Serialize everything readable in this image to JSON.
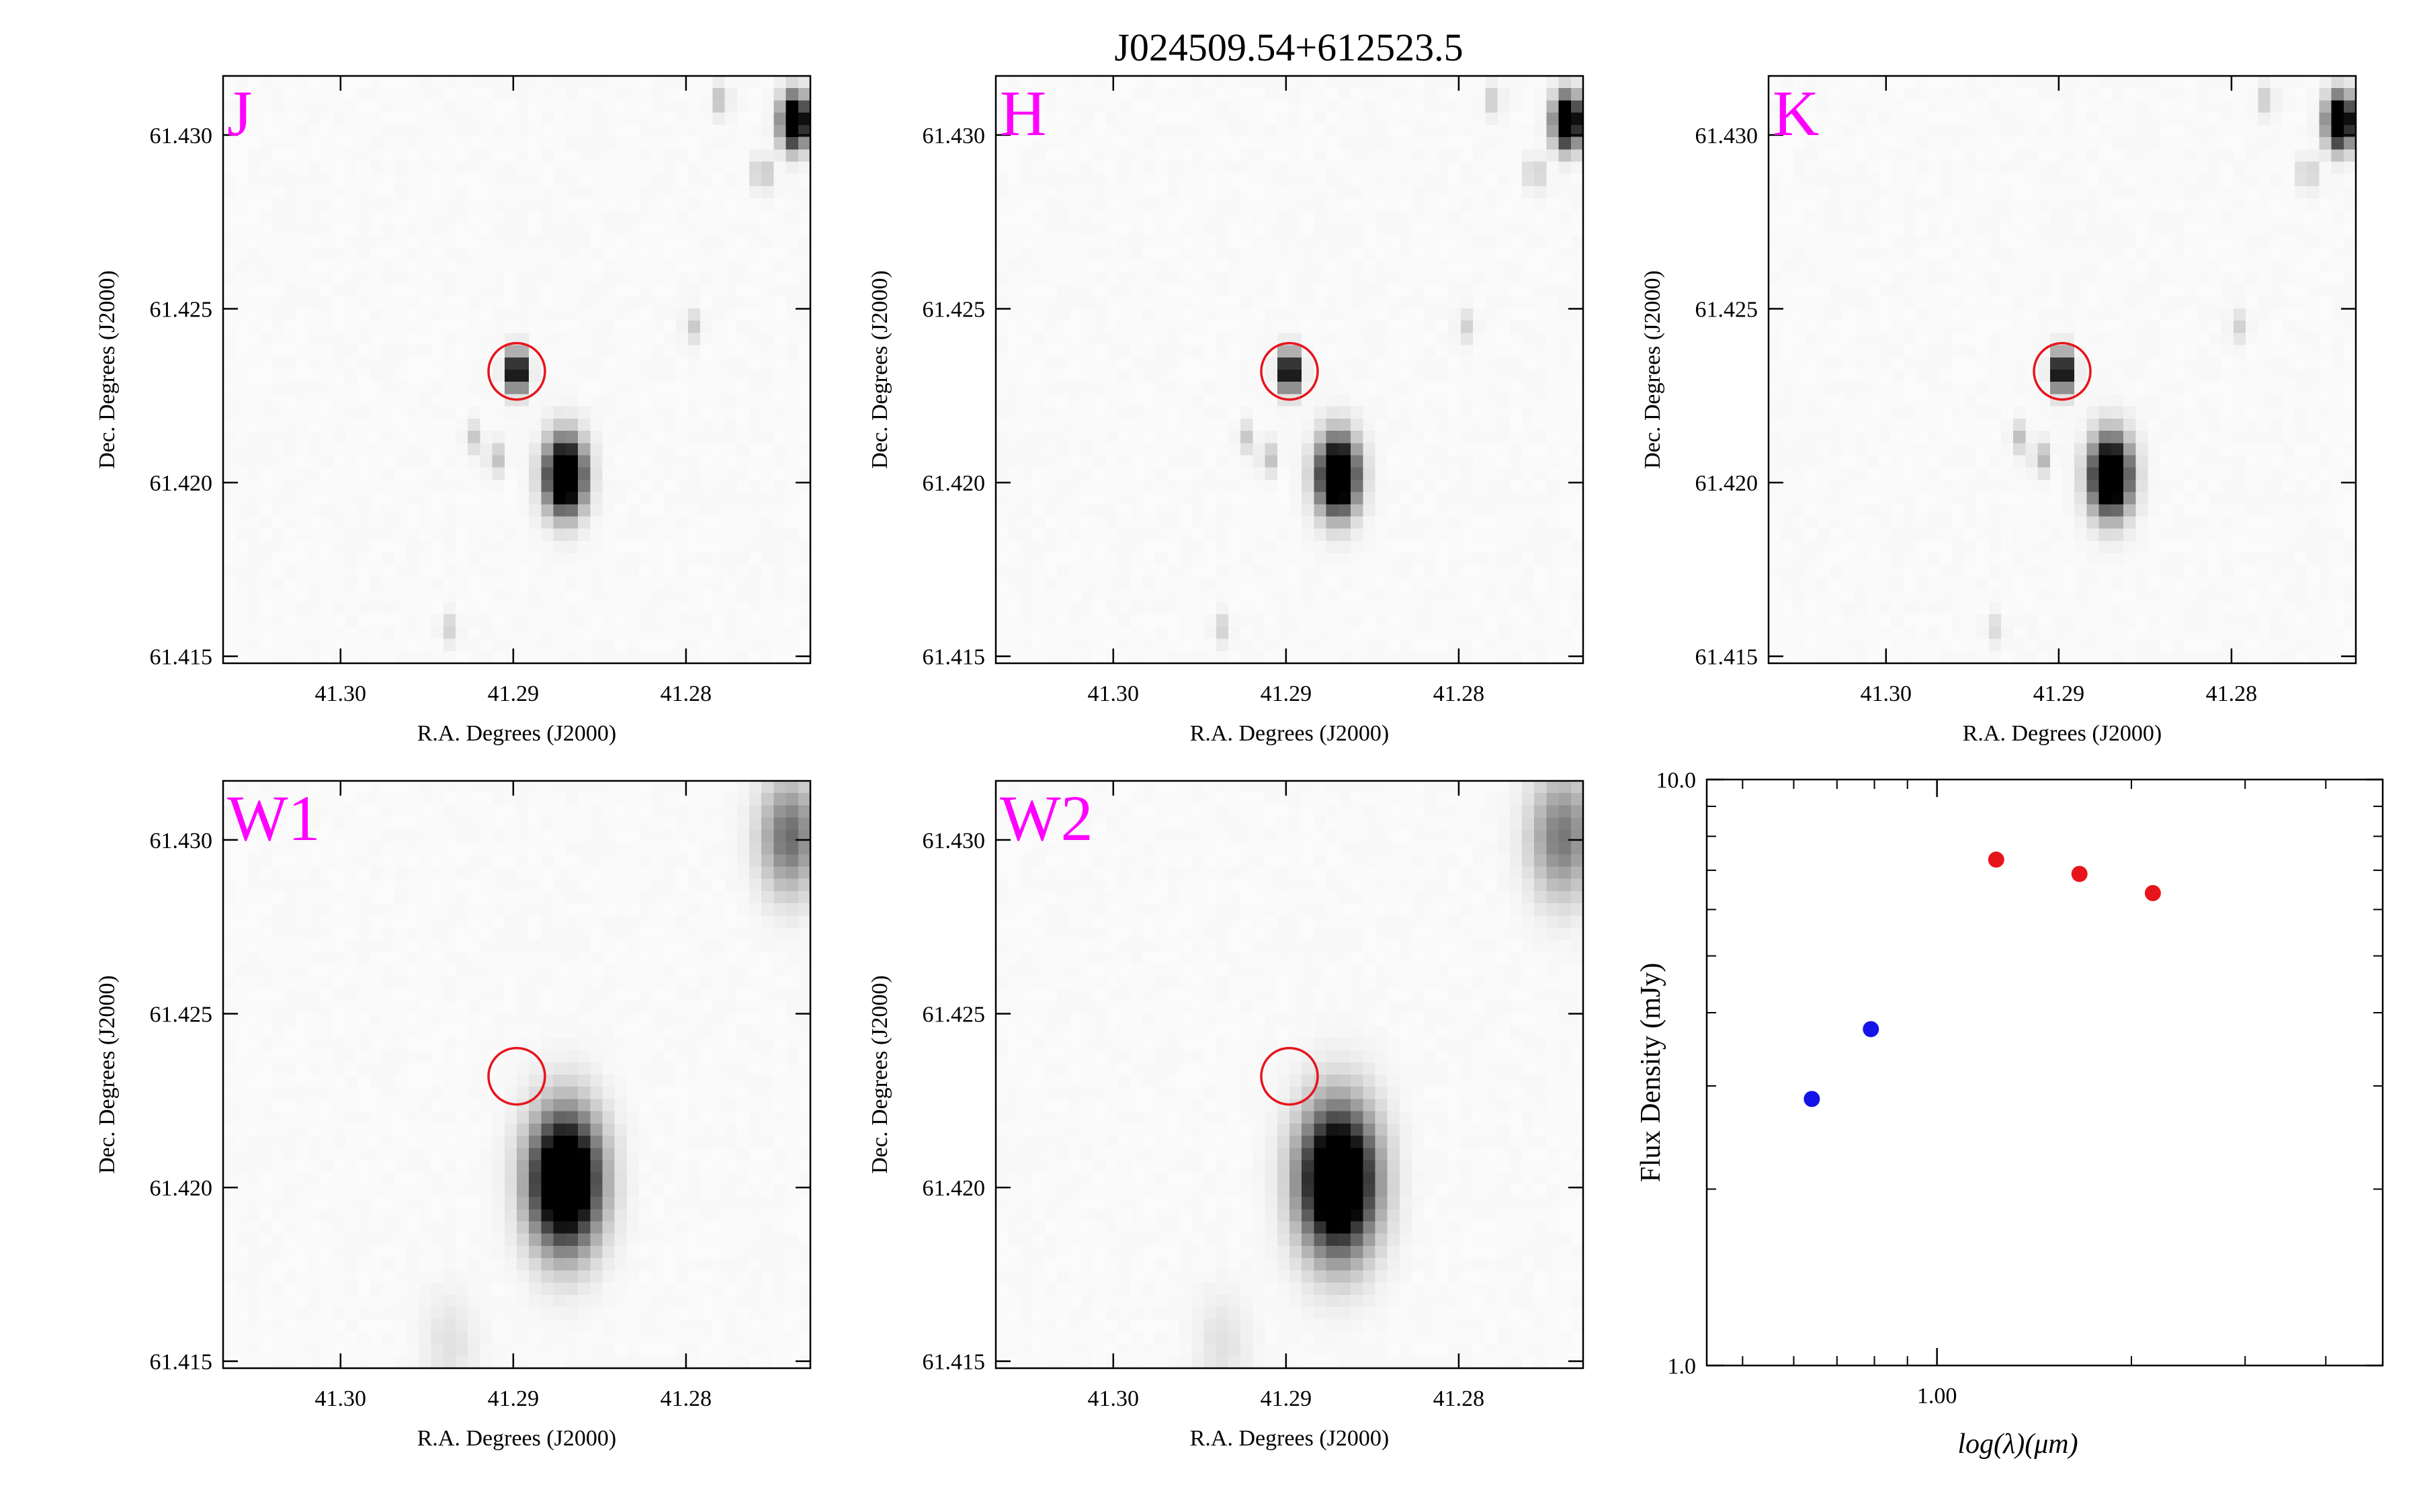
{
  "title": "J024509.54+612523.5",
  "colors": {
    "band_label": "#ff00ff",
    "target_circle": "#e8141c",
    "sed_2mass": "#e8141c",
    "sed_wise": "#1414e8",
    "frame": "#000000"
  },
  "chart_data": [
    {
      "type": "heatmap",
      "band": "J",
      "xlabel": "R.A. Degrees (J2000)",
      "ylabel": "Dec. Degrees (J2000)",
      "xlim": [
        41.3068,
        41.2728
      ],
      "ylim": [
        61.4148,
        61.4317
      ],
      "xticks": [
        "41.28",
        "41.29",
        "41.30"
      ],
      "xtick_values": [
        41.28,
        41.29,
        41.3
      ],
      "yticks": [
        "61.415",
        "61.420",
        "61.425",
        "61.430"
      ],
      "ytick_values": [
        61.415,
        61.42,
        61.425,
        61.43
      ],
      "target": {
        "ra": 41.2898,
        "dec": 61.4232
      },
      "sources": [
        {
          "ra": 41.2737,
          "dec": 61.4304,
          "peak": 1.0,
          "sigma": 0.0005
        },
        {
          "ra": 41.278,
          "dec": 61.431,
          "peak": 0.15,
          "sigma": 0.0003
        },
        {
          "ra": 41.2756,
          "dec": 61.4289,
          "peak": 0.2,
          "sigma": 0.0003
        },
        {
          "ra": 41.2796,
          "dec": 61.4245,
          "peak": 0.12,
          "sigma": 0.0003
        },
        {
          "ra": 41.2898,
          "dec": 61.4232,
          "peak": 0.85,
          "sigma": 0.00038
        },
        {
          "ra": 41.287,
          "dec": 61.4202,
          "peak": 1.0,
          "sigma": 0.00072
        },
        {
          "ra": 41.291,
          "dec": 61.4207,
          "peak": 0.15,
          "sigma": 0.0003
        },
        {
          "ra": 41.2923,
          "dec": 61.4213,
          "peak": 0.12,
          "sigma": 0.0003
        },
        {
          "ra": 41.2937,
          "dec": 61.4158,
          "peak": 0.1,
          "sigma": 0.0003
        }
      ]
    },
    {
      "type": "heatmap",
      "band": "H",
      "xlabel": "R.A. Degrees (J2000)",
      "ylabel": "Dec. Degrees (J2000)",
      "xlim": [
        41.3068,
        41.2728
      ],
      "ylim": [
        61.4148,
        61.4317
      ],
      "xticks": [
        "41.28",
        "41.29",
        "41.30"
      ],
      "xtick_values": [
        41.28,
        41.29,
        41.3
      ],
      "yticks": [
        "61.415",
        "61.420",
        "61.425",
        "61.430"
      ],
      "ytick_values": [
        61.415,
        61.42,
        61.425,
        61.43
      ],
      "target": {
        "ra": 41.2898,
        "dec": 61.4232
      },
      "sources": [
        {
          "ra": 41.2737,
          "dec": 61.4304,
          "peak": 1.0,
          "sigma": 0.0005
        },
        {
          "ra": 41.278,
          "dec": 61.431,
          "peak": 0.12,
          "sigma": 0.0003
        },
        {
          "ra": 41.2756,
          "dec": 61.4289,
          "peak": 0.16,
          "sigma": 0.0003
        },
        {
          "ra": 41.2796,
          "dec": 61.4245,
          "peak": 0.1,
          "sigma": 0.0003
        },
        {
          "ra": 41.2898,
          "dec": 61.4232,
          "peak": 0.85,
          "sigma": 0.00038
        },
        {
          "ra": 41.287,
          "dec": 61.4202,
          "peak": 1.0,
          "sigma": 0.00074
        },
        {
          "ra": 41.291,
          "dec": 61.4207,
          "peak": 0.15,
          "sigma": 0.0003
        },
        {
          "ra": 41.2923,
          "dec": 61.4213,
          "peak": 0.12,
          "sigma": 0.0003
        },
        {
          "ra": 41.2937,
          "dec": 61.4158,
          "peak": 0.1,
          "sigma": 0.0003
        }
      ]
    },
    {
      "type": "heatmap",
      "band": "K",
      "xlabel": "R.A. Degrees (J2000)",
      "ylabel": "Dec. Degrees (J2000)",
      "xlim": [
        41.3068,
        41.2728
      ],
      "ylim": [
        61.4148,
        61.4317
      ],
      "xticks": [
        "41.28",
        "41.29",
        "41.30"
      ],
      "xtick_values": [
        41.28,
        41.29,
        41.3
      ],
      "yticks": [
        "61.415",
        "61.420",
        "61.425",
        "61.430"
      ],
      "ytick_values": [
        61.415,
        61.42,
        61.425,
        61.43
      ],
      "target": {
        "ra": 41.2898,
        "dec": 61.4232
      },
      "sources": [
        {
          "ra": 41.2737,
          "dec": 61.4304,
          "peak": 1.0,
          "sigma": 0.0005
        },
        {
          "ra": 41.278,
          "dec": 61.431,
          "peak": 0.12,
          "sigma": 0.0003
        },
        {
          "ra": 41.2756,
          "dec": 61.4289,
          "peak": 0.16,
          "sigma": 0.0003
        },
        {
          "ra": 41.2796,
          "dec": 61.4245,
          "peak": 0.1,
          "sigma": 0.0003
        },
        {
          "ra": 41.2898,
          "dec": 61.4232,
          "peak": 0.85,
          "sigma": 0.00038
        },
        {
          "ra": 41.287,
          "dec": 61.4202,
          "peak": 1.0,
          "sigma": 0.00074
        },
        {
          "ra": 41.291,
          "dec": 61.4207,
          "peak": 0.18,
          "sigma": 0.0003
        },
        {
          "ra": 41.2923,
          "dec": 61.4213,
          "peak": 0.14,
          "sigma": 0.0003
        },
        {
          "ra": 41.2937,
          "dec": 61.4158,
          "peak": 0.08,
          "sigma": 0.0003
        }
      ]
    },
    {
      "type": "heatmap",
      "band": "W1",
      "xlabel": "R.A. Degrees (J2000)",
      "ylabel": "Dec. Degrees (J2000)",
      "xlim": [
        41.3068,
        41.2728
      ],
      "ylim": [
        61.4148,
        61.4317
      ],
      "xticks": [
        "41.28",
        "41.29",
        "41.30"
      ],
      "xtick_values": [
        41.28,
        41.29,
        41.3
      ],
      "yticks": [
        "61.415",
        "61.420",
        "61.425",
        "61.430"
      ],
      "ytick_values": [
        61.415,
        61.42,
        61.425,
        61.43
      ],
      "target": {
        "ra": 41.2898,
        "dec": 61.4232
      },
      "sources": [
        {
          "ra": 41.287,
          "dec": 61.4202,
          "peak": 1.0,
          "sigma": 0.0013
        },
        {
          "ra": 41.274,
          "dec": 61.4301,
          "peak": 0.35,
          "sigma": 0.0011
        },
        {
          "ra": 41.2937,
          "dec": 61.4155,
          "peak": 0.06,
          "sigma": 0.001
        }
      ]
    },
    {
      "type": "heatmap",
      "band": "W2",
      "xlabel": "R.A. Degrees (J2000)",
      "ylabel": "Dec. Degrees (J2000)",
      "xlim": [
        41.3068,
        41.2728
      ],
      "ylim": [
        61.4148,
        61.4317
      ],
      "xticks": [
        "41.28",
        "41.29",
        "41.30"
      ],
      "xtick_values": [
        41.28,
        41.29,
        41.3
      ],
      "yticks": [
        "61.415",
        "61.420",
        "61.425",
        "61.430"
      ],
      "ytick_values": [
        61.415,
        61.42,
        61.425,
        61.43
      ],
      "target": {
        "ra": 41.2898,
        "dec": 61.4232
      },
      "sources": [
        {
          "ra": 41.287,
          "dec": 61.4202,
          "peak": 1.0,
          "sigma": 0.0014
        },
        {
          "ra": 41.274,
          "dec": 61.4301,
          "peak": 0.32,
          "sigma": 0.0012
        },
        {
          "ra": 41.2937,
          "dec": 61.4155,
          "peak": 0.06,
          "sigma": 0.001
        }
      ]
    },
    {
      "type": "scatter",
      "xlabel": "log(λ)(μm)",
      "ylabel": "Flux Density (mJy)",
      "xscale": "log",
      "yscale": "log",
      "xlim": [
        0.44,
        4.9
      ],
      "ylim": [
        1.0,
        10.0
      ],
      "xticks": [
        "1.00"
      ],
      "xtick_values": [
        1.0
      ],
      "yticks": [
        "1.0",
        "10.0"
      ],
      "ytick_values": [
        1.0,
        10.0
      ],
      "series": [
        {
          "color": "#e8141c",
          "x": [
            1.235,
            1.662,
            2.159
          ],
          "y": [
            7.3,
            6.9,
            6.4
          ],
          "yerr": [
            0.12,
            0.12,
            0.11
          ]
        },
        {
          "color": "#1414e8",
          "x": [
            0.64,
            0.79
          ],
          "y": [
            2.85,
            3.75
          ],
          "yerr": [
            0,
            0
          ]
        }
      ]
    }
  ]
}
